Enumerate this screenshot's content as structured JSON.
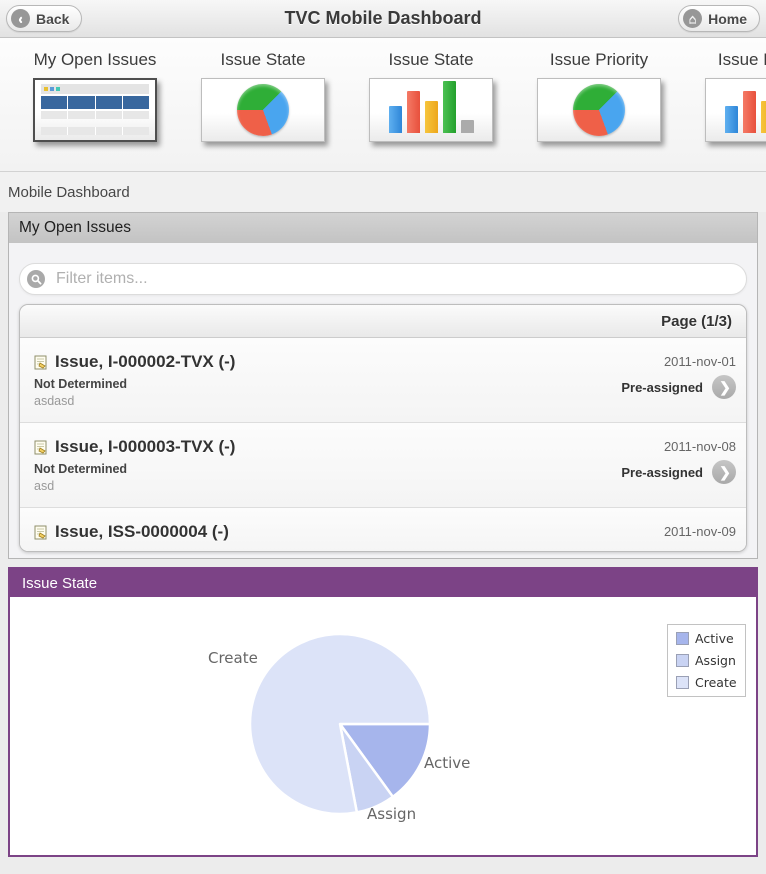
{
  "header": {
    "back_label": "Back",
    "title": "TVC Mobile Dashboard",
    "home_label": "Home"
  },
  "widget_strip": {
    "widgets": [
      {
        "label": "My Open Issues",
        "type": "table",
        "selected": true
      },
      {
        "label": "Issue State",
        "type": "pie"
      },
      {
        "label": "Issue State",
        "type": "bar"
      },
      {
        "label": "Issue Priority",
        "type": "pie"
      },
      {
        "label": "Issue Priority",
        "type": "bar"
      }
    ]
  },
  "breadcrumb": "Mobile Dashboard",
  "open_issues": {
    "title": "My Open Issues",
    "filter_placeholder": "Filter items...",
    "page_label": "Page (1/3)",
    "items": [
      {
        "title": "Issue, I-000002-TVX (-)",
        "state": "Not Determined",
        "description": "asdasd",
        "date": "2011-nov-01",
        "assignment": "Pre-assigned"
      },
      {
        "title": "Issue, I-000003-TVX (-)",
        "state": "Not Determined",
        "description": "asd",
        "date": "2011-nov-08",
        "assignment": "Pre-assigned"
      },
      {
        "title": "Issue, ISS-0000004 (-)",
        "date": "2011-nov-09"
      }
    ]
  },
  "issue_state_panel": {
    "title": "Issue State",
    "accent_color": "#7c4386"
  },
  "chart_data": {
    "type": "pie",
    "title": "Issue State",
    "slices": [
      {
        "label": "Active",
        "percent": 15,
        "color": "#a6b5ec"
      },
      {
        "label": "Assign",
        "percent": 7,
        "color": "#c9d3f3"
      },
      {
        "label": "Create",
        "percent": 78,
        "color": "#dce3f8"
      }
    ],
    "start_angle_deg": 0,
    "legend_position": "top-right",
    "separator_color": "#ffffff"
  },
  "icons": {
    "back": "chevron-left-circle",
    "home": "home-circle",
    "filter": "magnifier-circle",
    "list_item": "issue-note",
    "row_action": "chevron-right-circle"
  }
}
